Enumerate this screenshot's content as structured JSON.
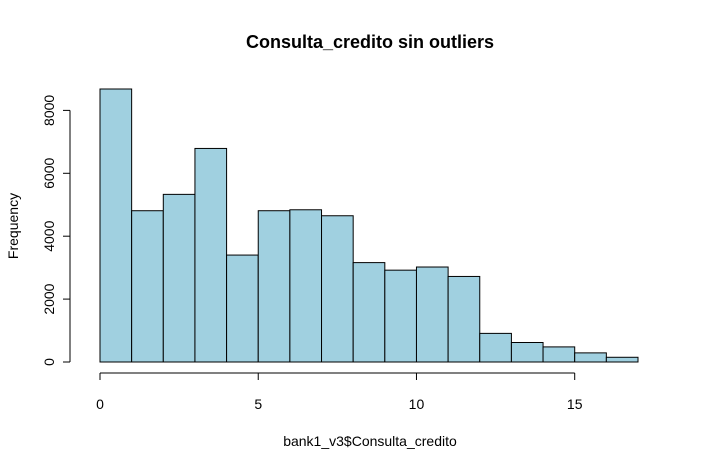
{
  "chart_data": {
    "type": "bar",
    "title": "Consulta_credito sin outliers",
    "xlabel": "bank1_v3$Consulta_credito",
    "ylabel": "Frequency",
    "bar_color": "#a0d0e0",
    "bins": [
      {
        "from": 0,
        "to": 1,
        "count": 8680
      },
      {
        "from": 1,
        "to": 2,
        "count": 4810
      },
      {
        "from": 2,
        "to": 3,
        "count": 5330
      },
      {
        "from": 3,
        "to": 4,
        "count": 6790
      },
      {
        "from": 4,
        "to": 5,
        "count": 3400
      },
      {
        "from": 5,
        "to": 6,
        "count": 4810
      },
      {
        "from": 6,
        "to": 7,
        "count": 4840
      },
      {
        "from": 7,
        "to": 8,
        "count": 4650
      },
      {
        "from": 8,
        "to": 9,
        "count": 3160
      },
      {
        "from": 9,
        "to": 10,
        "count": 2920
      },
      {
        "from": 10,
        "to": 11,
        "count": 3020
      },
      {
        "from": 11,
        "to": 12,
        "count": 2720
      },
      {
        "from": 12,
        "to": 13,
        "count": 910
      },
      {
        "from": 13,
        "to": 14,
        "count": 620
      },
      {
        "from": 14,
        "to": 15,
        "count": 480
      },
      {
        "from": 15,
        "to": 16,
        "count": 290
      },
      {
        "from": 16,
        "to": 17,
        "count": 150
      }
    ],
    "xlim": [
      0,
      17
    ],
    "ylim": [
      0,
      8680
    ],
    "x_ticks": [
      0,
      5,
      10,
      15
    ],
    "y_ticks": [
      0,
      2000,
      4000,
      6000,
      8000
    ],
    "grid": false
  }
}
